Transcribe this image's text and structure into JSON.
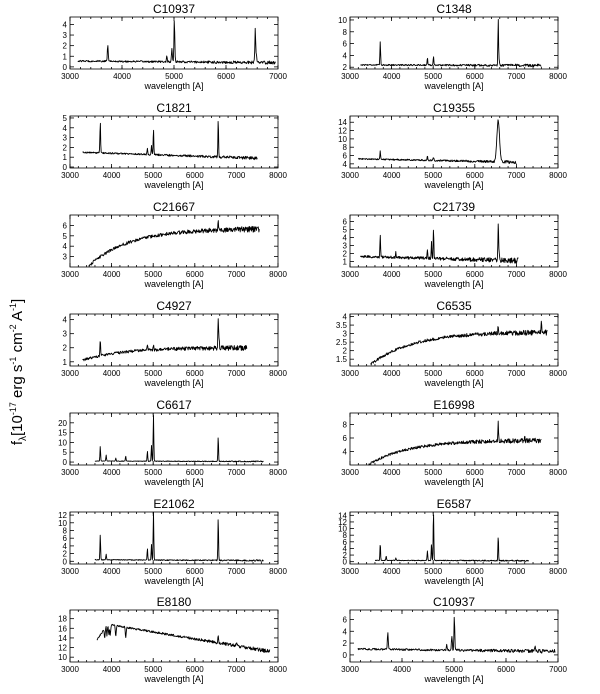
{
  "figure": {
    "ylabel": "fλ [10⁻¹⁷ erg s⁻¹ cm⁻² A⁻¹]",
    "ylabel_base": "f",
    "ylabel_sub": "λ",
    "ylabel_bracket_open": "[10",
    "ylabel_exp1": "-17",
    "ylabel_mid1": " erg s",
    "ylabel_exp2": "-1",
    "ylabel_mid2": " cm",
    "ylabel_exp3": "-2",
    "ylabel_mid3": " A",
    "ylabel_exp4": "-1",
    "ylabel_close": "]"
  },
  "chart_data": [
    {
      "type": "line",
      "title": "C10937",
      "xlabel": "wavelength [A]",
      "ylabel": "",
      "xlim": [
        3000,
        7000
      ],
      "ylim": [
        -0.2,
        4.7
      ],
      "xticks": [
        3000,
        4000,
        5000,
        6000,
        7000
      ],
      "yticks": [
        0,
        1,
        2,
        3,
        4
      ],
      "x_start": 3150,
      "x_end": 6950,
      "baseline": [
        0.55,
        0.4
      ],
      "noise": 0.12,
      "lines": [
        {
          "x": 3727,
          "h": 1.6
        },
        {
          "x": 4861,
          "h": 0.5
        },
        {
          "x": 4959,
          "h": 1.3
        },
        {
          "x": 5007,
          "h": 4.0
        },
        {
          "x": 6563,
          "h": 3.2
        },
        {
          "x": 6583,
          "h": 0.6
        }
      ]
    },
    {
      "type": "line",
      "title": "C1348",
      "xlabel": "wavelength [A]",
      "ylabel": "",
      "xlim": [
        3000,
        8000
      ],
      "ylim": [
        1.7,
        10.5
      ],
      "xticks": [
        3000,
        4000,
        5000,
        6000,
        7000,
        8000
      ],
      "yticks": [
        2,
        4,
        6,
        8,
        10
      ],
      "x_start": 3250,
      "x_end": 7600,
      "baseline": [
        2.4,
        2.3
      ],
      "noise": 0.18,
      "lines": [
        {
          "x": 3727,
          "h": 4.0
        },
        {
          "x": 4861,
          "h": 1.3
        },
        {
          "x": 5007,
          "h": 1.6
        },
        {
          "x": 6563,
          "h": 7.8
        },
        {
          "x": 6583,
          "h": 0.8
        }
      ]
    },
    {
      "type": "line",
      "title": "C1821",
      "xlabel": "wavelength [A]",
      "ylabel": "",
      "xlim": [
        3000,
        8000
      ],
      "ylim": [
        -0.1,
        5.2
      ],
      "xticks": [
        3000,
        4000,
        5000,
        6000,
        7000,
        8000
      ],
      "yticks": [
        0,
        1,
        2,
        3,
        4,
        5
      ],
      "x_start": 3300,
      "x_end": 7500,
      "baseline": [
        1.5,
        0.9
      ],
      "noise": 0.12,
      "lines": [
        {
          "x": 3727,
          "h": 3.3
        },
        {
          "x": 4861,
          "h": 0.7
        },
        {
          "x": 4959,
          "h": 0.9
        },
        {
          "x": 5007,
          "h": 2.6
        },
        {
          "x": 6563,
          "h": 3.9
        }
      ]
    },
    {
      "type": "line",
      "title": "C19355",
      "xlabel": "wavelength [A]",
      "ylabel": "",
      "xlim": [
        3000,
        8000
      ],
      "ylim": [
        3.0,
        15.5
      ],
      "xticks": [
        3000,
        4000,
        5000,
        6000,
        7000,
        8000
      ],
      "yticks": [
        4,
        6,
        8,
        10,
        12,
        14
      ],
      "x_start": 3200,
      "x_end": 7000,
      "baseline": [
        5.2,
        4.4
      ],
      "noise": 0.25,
      "lines": [
        {
          "x": 3727,
          "h": 2.0
        },
        {
          "x": 4861,
          "h": 1.2
        },
        {
          "x": 5007,
          "h": 0.8
        },
        {
          "x": 6563,
          "h": 10.0,
          "w": 45
        }
      ]
    },
    {
      "type": "line",
      "title": "C21667",
      "xlabel": "wavelength [A]",
      "ylabel": "",
      "xlim": [
        3000,
        8000
      ],
      "ylim": [
        2.0,
        7.0
      ],
      "xticks": [
        3000,
        4000,
        5000,
        6000,
        7000,
        8000
      ],
      "yticks": [
        3,
        4,
        5,
        6
      ],
      "x_start": 3450,
      "x_end": 7550,
      "baseline": [
        2.1,
        5.7
      ],
      "noise": 0.22,
      "rise": true,
      "lines": [
        {
          "x": 6563,
          "h": 1.0
        }
      ]
    },
    {
      "type": "line",
      "title": "C21739",
      "xlabel": "wavelength [A]",
      "ylabel": "",
      "xlim": [
        3000,
        8000
      ],
      "ylim": [
        0.3,
        6.8
      ],
      "xticks": [
        3000,
        4000,
        5000,
        6000,
        7000,
        8000
      ],
      "yticks": [
        1,
        2,
        3,
        4,
        5,
        6
      ],
      "x_start": 3250,
      "x_end": 7050,
      "baseline": [
        1.6,
        1.1
      ],
      "noise": 0.25,
      "lines": [
        {
          "x": 3727,
          "h": 2.8
        },
        {
          "x": 4102,
          "h": 0.6
        },
        {
          "x": 4861,
          "h": 1.0
        },
        {
          "x": 4959,
          "h": 2.0
        },
        {
          "x": 5007,
          "h": 3.7
        },
        {
          "x": 6563,
          "h": 4.9
        },
        {
          "x": 6583,
          "h": 1.2
        }
      ]
    },
    {
      "type": "line",
      "title": "C4927",
      "xlabel": "wavelength [A]",
      "ylabel": "",
      "xlim": [
        3000,
        8000
      ],
      "ylim": [
        0.7,
        4.4
      ],
      "xticks": [
        3000,
        4000,
        5000,
        6000,
        7000,
        8000
      ],
      "yticks": [
        1,
        2,
        3,
        4
      ],
      "x_start": 3300,
      "x_end": 7250,
      "baseline": [
        1.1,
        2.0
      ],
      "noise": 0.14,
      "rise": true,
      "lines": [
        {
          "x": 3727,
          "h": 1.1
        },
        {
          "x": 4861,
          "h": 0.4
        },
        {
          "x": 5007,
          "h": 0.4
        },
        {
          "x": 6563,
          "h": 2.2
        },
        {
          "x": 6583,
          "h": 0.6
        }
      ]
    },
    {
      "type": "line",
      "title": "C6535",
      "xlabel": "wavelength [A]",
      "ylabel": "",
      "xlim": [
        3000,
        8000
      ],
      "ylim": [
        1.1,
        4.15
      ],
      "xticks": [
        3000,
        4000,
        5000,
        6000,
        7000,
        8000
      ],
      "yticks": [
        1.5,
        2.0,
        2.5,
        3.0,
        3.5,
        4.0
      ],
      "x_start": 3500,
      "x_end": 7750,
      "baseline": [
        1.2,
        3.1
      ],
      "noise": 0.12,
      "rise": true,
      "lines": [
        {
          "x": 6563,
          "h": 0.5
        },
        {
          "x": 7600,
          "h": 0.8
        }
      ]
    },
    {
      "type": "line",
      "title": "C6617",
      "xlabel": "wavelength [A]",
      "ylabel": "",
      "xlim": [
        3000,
        8000
      ],
      "ylim": [
        -1.5,
        25
      ],
      "xticks": [
        3000,
        4000,
        5000,
        6000,
        7000,
        8000
      ],
      "yticks": [
        0,
        5,
        10,
        15,
        20
      ],
      "x_start": 3600,
      "x_end": 7650,
      "baseline": [
        0.5,
        0.3
      ],
      "noise": 0.2,
      "lines": [
        {
          "x": 3727,
          "h": 7.5
        },
        {
          "x": 3869,
          "h": 3.0
        },
        {
          "x": 4102,
          "h": 1.5
        },
        {
          "x": 4340,
          "h": 2.5
        },
        {
          "x": 4861,
          "h": 5.0
        },
        {
          "x": 4959,
          "h": 8.0
        },
        {
          "x": 5007,
          "h": 23.5
        },
        {
          "x": 6563,
          "h": 12.5
        }
      ]
    },
    {
      "type": "line",
      "title": "E16998",
      "xlabel": "wavelength [A]",
      "ylabel": "",
      "xlim": [
        3000,
        8000
      ],
      "ylim": [
        2.0,
        9.7
      ],
      "xticks": [
        3000,
        4000,
        5000,
        6000,
        7000,
        8000
      ],
      "yticks": [
        4,
        6,
        8
      ],
      "x_start": 3450,
      "x_end": 7600,
      "baseline": [
        2.1,
        5.7
      ],
      "noise": 0.3,
      "rise": true,
      "lines": [
        {
          "x": 6563,
          "h": 2.8
        },
        {
          "x": 7200,
          "h": 0.8
        }
      ]
    },
    {
      "type": "line",
      "title": "E21062",
      "xlabel": "wavelength [A]",
      "ylabel": "",
      "xlim": [
        3000,
        8000
      ],
      "ylim": [
        -0.7,
        12.8
      ],
      "xticks": [
        3000,
        4000,
        5000,
        6000,
        7000,
        8000
      ],
      "yticks": [
        0,
        2,
        4,
        6,
        8,
        10,
        12
      ],
      "x_start": 3600,
      "x_end": 7650,
      "baseline": [
        0.4,
        0.2
      ],
      "noise": 0.15,
      "lines": [
        {
          "x": 3727,
          "h": 6.5
        },
        {
          "x": 3869,
          "h": 1.5
        },
        {
          "x": 4861,
          "h": 3.0
        },
        {
          "x": 4959,
          "h": 4.0
        },
        {
          "x": 5007,
          "h": 12.5
        },
        {
          "x": 6563,
          "h": 11.0
        }
      ]
    },
    {
      "type": "line",
      "title": "E6587",
      "xlabel": "wavelength [A]",
      "ylabel": "",
      "xlim": [
        3000,
        8000
      ],
      "ylim": [
        -0.7,
        15
      ],
      "xticks": [
        3000,
        4000,
        5000,
        6000,
        7000,
        8000
      ],
      "yticks": [
        0,
        2,
        4,
        6,
        8,
        10,
        12,
        14
      ],
      "x_start": 3600,
      "x_end": 7300,
      "baseline": [
        0.4,
        0.3
      ],
      "noise": 0.15,
      "lines": [
        {
          "x": 3727,
          "h": 5.0
        },
        {
          "x": 3869,
          "h": 1.3
        },
        {
          "x": 4102,
          "h": 0.8
        },
        {
          "x": 4861,
          "h": 3.0
        },
        {
          "x": 4959,
          "h": 5.0
        },
        {
          "x": 5007,
          "h": 14.5
        },
        {
          "x": 6563,
          "h": 7.5
        }
      ]
    },
    {
      "type": "line",
      "title": "E8180",
      "xlabel": "wavelength [A]",
      "ylabel": "",
      "xlim": [
        3000,
        8000
      ],
      "ylim": [
        9.0,
        19.8
      ],
      "xticks": [
        3000,
        4000,
        5000,
        6000,
        7000,
        8000
      ],
      "yticks": [
        10,
        12,
        14,
        16,
        18
      ],
      "x_start": 3650,
      "x_end": 7800,
      "baseline": [
        17.2,
        11.2
      ],
      "noise": 0.3,
      "absorb": true,
      "lines": [
        {
          "x": 6563,
          "h": 1.5
        },
        {
          "x": 7000,
          "h": 0.7
        }
      ]
    },
    {
      "type": "line",
      "title": "C10937",
      "xlabel": "wavelength [A]",
      "ylabel": "",
      "xlim": [
        3000,
        7000
      ],
      "ylim": [
        -1.2,
        7.6
      ],
      "xticks": [
        3000,
        4000,
        5000,
        6000,
        7000
      ],
      "yticks": [
        0,
        2,
        4,
        6
      ],
      "x_start": 3150,
      "x_end": 6950,
      "baseline": [
        1.0,
        0.6
      ],
      "noise": 0.25,
      "lines": [
        {
          "x": 3727,
          "h": 2.8
        },
        {
          "x": 4861,
          "h": 1.0
        },
        {
          "x": 4959,
          "h": 2.5
        },
        {
          "x": 5007,
          "h": 5.8
        },
        {
          "x": 6563,
          "h": 0.8
        }
      ]
    }
  ]
}
